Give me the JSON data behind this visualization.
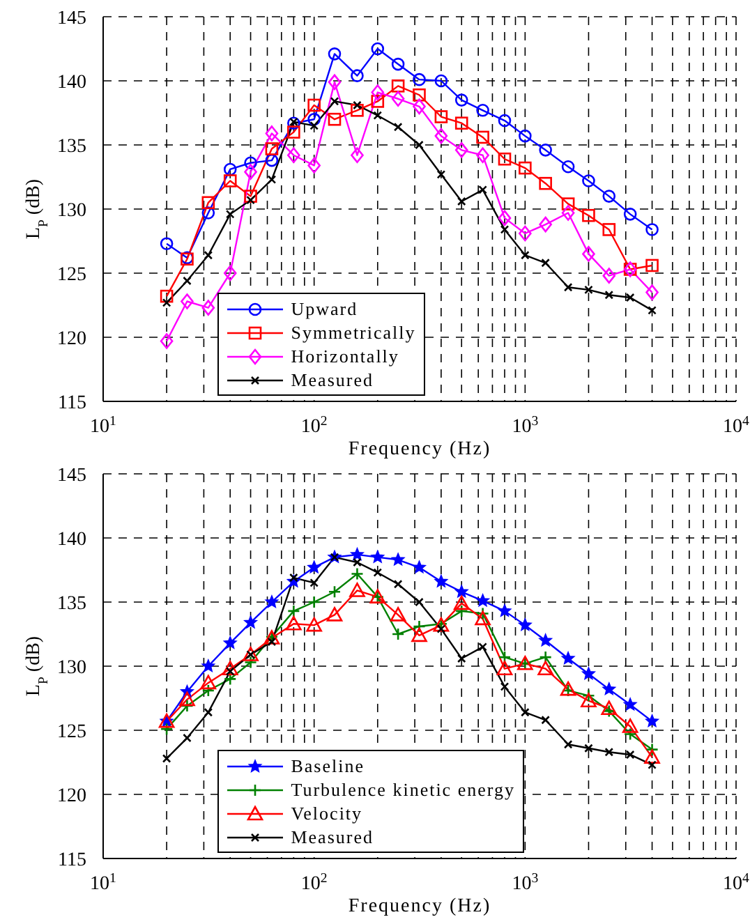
{
  "chart_data": [
    {
      "type": "line",
      "xlabel": "Frequency (Hz)",
      "ylabel": "L$_{P}$ (dB)",
      "log": "x",
      "grid": true,
      "legend": "bottom",
      "x": [
        20,
        25,
        31.5,
        40,
        50,
        63,
        80,
        100,
        125,
        160,
        200,
        250,
        315,
        400,
        500,
        630,
        800,
        1000,
        1250,
        1600,
        2000,
        2500,
        3150,
        4000
      ],
      "xlim": [
        10,
        10000
      ],
      "xticks": [
        {
          "value": 10,
          "label": "10$^{1}$"
        },
        {
          "value": 20,
          "label": null
        },
        {
          "value": 30,
          "label": null
        },
        {
          "value": 40,
          "label": null
        },
        {
          "value": 50,
          "label": null
        },
        {
          "value": 60,
          "label": null
        },
        {
          "value": 70,
          "label": null
        },
        {
          "value": 80,
          "label": null
        },
        {
          "value": 90,
          "label": null
        },
        {
          "value": 100,
          "label": "10$^{2}$"
        },
        {
          "value": 200,
          "label": null
        },
        {
          "value": 300,
          "label": null
        },
        {
          "value": 400,
          "label": null
        },
        {
          "value": 500,
          "label": null
        },
        {
          "value": 600,
          "label": null
        },
        {
          "value": 700,
          "label": null
        },
        {
          "value": 800,
          "label": null
        },
        {
          "value": 900,
          "label": null
        },
        {
          "value": 1000,
          "label": "10$^{3}$"
        },
        {
          "value": 2000,
          "label": null
        },
        {
          "value": 3000,
          "label": null
        },
        {
          "value": 4000,
          "label": null
        },
        {
          "value": 5000,
          "label": null
        },
        {
          "value": 6000,
          "label": null
        },
        {
          "value": 7000,
          "label": null
        },
        {
          "value": 8000,
          "label": null
        },
        {
          "value": 9000,
          "label": null
        },
        {
          "value": 10000,
          "label": "10$^{4}$"
        }
      ],
      "ylim": [
        115,
        145
      ],
      "yticks": [
        115,
        120,
        125,
        130,
        135,
        140,
        145
      ],
      "series": [
        {
          "name": "Upward",
          "color": "#0000ff",
          "marker": "circle",
          "values": [
            127.3,
            126.2,
            129.7,
            133.1,
            133.6,
            133.8,
            136.7,
            137.0,
            142.1,
            140.4,
            142.5,
            141.3,
            140.1,
            140.0,
            138.5,
            137.7,
            136.9,
            135.7,
            134.6,
            133.3,
            132.2,
            131.0,
            129.6,
            128.4
          ]
        },
        {
          "name": "Symmetrically",
          "color": "#ff0000",
          "marker": "square",
          "values": [
            123.2,
            126.1,
            130.5,
            132.2,
            131.0,
            134.7,
            136.0,
            138.1,
            137.0,
            137.7,
            138.4,
            139.6,
            138.9,
            137.2,
            136.7,
            135.6,
            133.9,
            133.2,
            132.0,
            130.4,
            129.5,
            128.4,
            125.3,
            125.6
          ]
        },
        {
          "name": "Horizontally",
          "color": "#ff00ff",
          "marker": "diamond",
          "values": [
            119.7,
            122.8,
            122.3,
            125.0,
            132.9,
            135.9,
            134.2,
            133.4,
            139.9,
            134.2,
            139.1,
            138.6,
            138.0,
            135.7,
            134.6,
            134.2,
            129.3,
            128.1,
            128.8,
            129.7,
            126.5,
            124.8,
            125.3,
            123.5
          ]
        },
        {
          "name": "Measured",
          "color": "#000000",
          "marker": "x",
          "values": [
            122.7,
            124.4,
            126.4,
            129.6,
            130.7,
            132.3,
            136.8,
            136.5,
            138.4,
            138.1,
            137.3,
            136.4,
            135.0,
            132.7,
            130.6,
            131.5,
            128.4,
            126.4,
            125.8,
            123.9,
            123.7,
            123.3,
            123.1,
            122.1
          ]
        }
      ]
    },
    {
      "type": "line",
      "xlabel": "Frequency (Hz)",
      "ylabel": "L$_{P}$ (dB)",
      "log": "x",
      "grid": true,
      "legend": "bottom",
      "x": [
        20,
        25,
        31.5,
        40,
        50,
        63,
        80,
        100,
        125,
        160,
        200,
        250,
        315,
        400,
        500,
        630,
        800,
        1000,
        1250,
        1600,
        2000,
        2500,
        3150,
        4000
      ],
      "xlim": [
        10,
        10000
      ],
      "xticks": [
        {
          "value": 10,
          "label": "10$^{1}$"
        },
        {
          "value": 20,
          "label": null
        },
        {
          "value": 30,
          "label": null
        },
        {
          "value": 40,
          "label": null
        },
        {
          "value": 50,
          "label": null
        },
        {
          "value": 60,
          "label": null
        },
        {
          "value": 70,
          "label": null
        },
        {
          "value": 80,
          "label": null
        },
        {
          "value": 90,
          "label": null
        },
        {
          "value": 100,
          "label": "10$^{2}$"
        },
        {
          "value": 200,
          "label": null
        },
        {
          "value": 300,
          "label": null
        },
        {
          "value": 400,
          "label": null
        },
        {
          "value": 500,
          "label": null
        },
        {
          "value": 600,
          "label": null
        },
        {
          "value": 700,
          "label": null
        },
        {
          "value": 800,
          "label": null
        },
        {
          "value": 900,
          "label": null
        },
        {
          "value": 1000,
          "label": "10$^{3}$"
        },
        {
          "value": 2000,
          "label": null
        },
        {
          "value": 3000,
          "label": null
        },
        {
          "value": 4000,
          "label": null
        },
        {
          "value": 5000,
          "label": null
        },
        {
          "value": 6000,
          "label": null
        },
        {
          "value": 7000,
          "label": null
        },
        {
          "value": 8000,
          "label": null
        },
        {
          "value": 9000,
          "label": null
        },
        {
          "value": 10000,
          "label": "10$^{4}$"
        }
      ],
      "ylim": [
        115,
        145
      ],
      "yticks": [
        115,
        120,
        125,
        130,
        135,
        140,
        145
      ],
      "series": [
        {
          "name": "Baseline",
          "color": "#0000ff",
          "marker": "star",
          "values": [
            125.7,
            128.0,
            130.0,
            131.8,
            133.4,
            135.0,
            136.6,
            137.7,
            138.5,
            138.7,
            138.5,
            138.3,
            137.7,
            136.6,
            135.8,
            135.1,
            134.3,
            133.2,
            132.0,
            130.6,
            129.4,
            128.2,
            127.0,
            125.7
          ]
        },
        {
          "name": "Turbulence kinetic energy",
          "color": "#008000",
          "marker": "cross",
          "values": [
            125.1,
            126.9,
            128.1,
            129.0,
            130.3,
            132.3,
            134.3,
            135.0,
            135.8,
            137.2,
            135.4,
            132.5,
            133.1,
            133.3,
            134.3,
            134.1,
            130.7,
            130.2,
            130.7,
            128.1,
            127.7,
            126.5,
            124.7,
            123.5
          ]
        },
        {
          "name": "Velocity",
          "color": "#ff0000",
          "marker": "triangle",
          "values": [
            125.7,
            127.4,
            128.7,
            129.8,
            130.9,
            132.2,
            133.3,
            133.2,
            134.0,
            135.9,
            135.4,
            134.0,
            132.4,
            133.2,
            134.9,
            133.7,
            129.8,
            130.2,
            129.8,
            128.2,
            127.3,
            126.7,
            125.3,
            122.9
          ]
        },
        {
          "name": "Measured",
          "color": "#000000",
          "marker": "x",
          "values": [
            122.8,
            124.4,
            126.4,
            129.6,
            130.9,
            131.9,
            136.9,
            136.5,
            138.5,
            138.1,
            137.3,
            136.4,
            135.0,
            132.9,
            130.6,
            131.5,
            128.4,
            126.4,
            125.8,
            123.9,
            123.6,
            123.3,
            123.1,
            122.3
          ]
        }
      ]
    }
  ]
}
